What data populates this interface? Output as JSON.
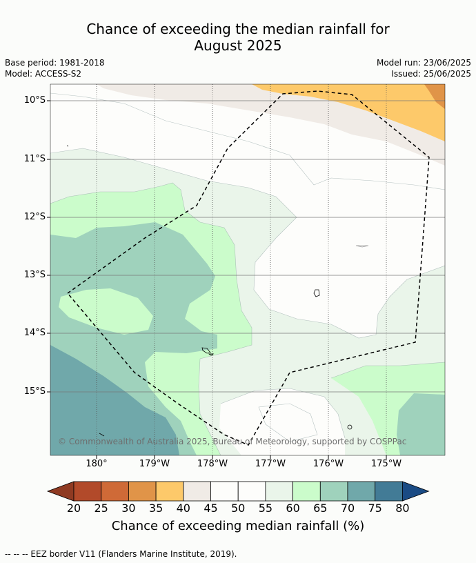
{
  "title_line1": "Chance of exceeding the median rainfall for",
  "title_line2": "August 2025",
  "meta": {
    "base_period": "Base period: 1981-2018",
    "model": "Model: ACCESS-S2",
    "model_run": "Model run: 23/06/2025",
    "issued": "Issued: 25/06/2025"
  },
  "map": {
    "lat_labels": [
      "10°S",
      "11°S",
      "12°S",
      "13°S",
      "14°S",
      "15°S"
    ],
    "lon_labels": [
      "180°",
      "179°W",
      "178°W",
      "177°W",
      "176°W",
      "175°W"
    ],
    "copyright": "© Commonwealth of Australia 2025, Bureau of Meteorology, supported by COSPPac"
  },
  "colorbar": {
    "label": "Chance of exceeding median rainfall (%)",
    "ticks": [
      "20",
      "25",
      "30",
      "35",
      "40",
      "45",
      "50",
      "55",
      "60",
      "65",
      "70",
      "75",
      "80"
    ],
    "colors": [
      "#8f3a22",
      "#b24a2a",
      "#cf6a37",
      "#e09448",
      "#fdc96a",
      "#f0ebe6",
      "#fdfdfb",
      "#fdfdfb",
      "#eaf5ea",
      "#cbfccb",
      "#9fd2bc",
      "#70a8aa",
      "#427b96",
      "#1a4b84"
    ]
  },
  "footer": "--  --  -- EEZ border V11 (Flanders Marine Institute, 2019)."
}
